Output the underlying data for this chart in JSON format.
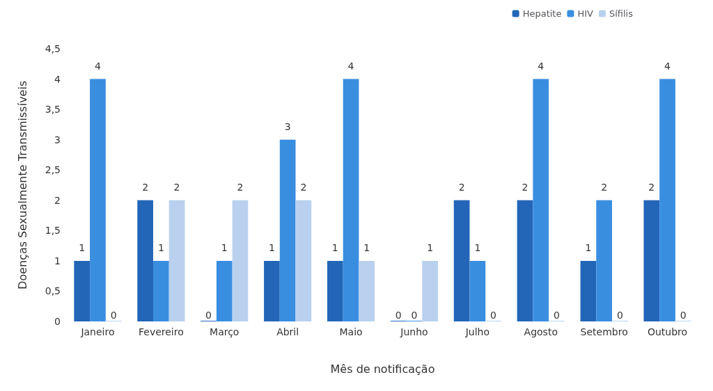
{
  "chart_data": {
    "type": "bar",
    "xlabel": "Mês de notificação",
    "ylabel": "Doenças Sexualmente Transmissíveis",
    "categories": [
      "Janeiro",
      "Fevereiro",
      "Março",
      "Abril",
      "Maio",
      "Junho",
      "Julho",
      "Agosto",
      "Setembro",
      "Outubro"
    ],
    "series": [
      {
        "name": "Hepatite",
        "color": "#2366b8",
        "values": [
          1,
          2,
          0,
          1,
          1,
          0,
          2,
          2,
          1,
          2
        ]
      },
      {
        "name": "HIV",
        "color": "#3a8ee0",
        "values": [
          4,
          1,
          1,
          3,
          4,
          0,
          1,
          4,
          2,
          4
        ]
      },
      {
        "name": "Sífilis",
        "color": "#b9d1ef",
        "values": [
          0,
          2,
          2,
          2,
          1,
          1,
          0,
          0,
          0,
          0
        ]
      }
    ],
    "ylim": [
      0,
      4.5
    ],
    "yticks": [
      0,
      {
        "value": 0.5,
        "label": "0,5"
      },
      1,
      {
        "value": 1.5,
        "label": "1,5"
      },
      2,
      {
        "value": 2.5,
        "label": "2,5"
      },
      3,
      {
        "value": 3.5,
        "label": "3,5"
      },
      4,
      {
        "value": 4.5,
        "label": "4,5"
      }
    ],
    "data_labels": true,
    "legend": "top right",
    "grid": false
  }
}
